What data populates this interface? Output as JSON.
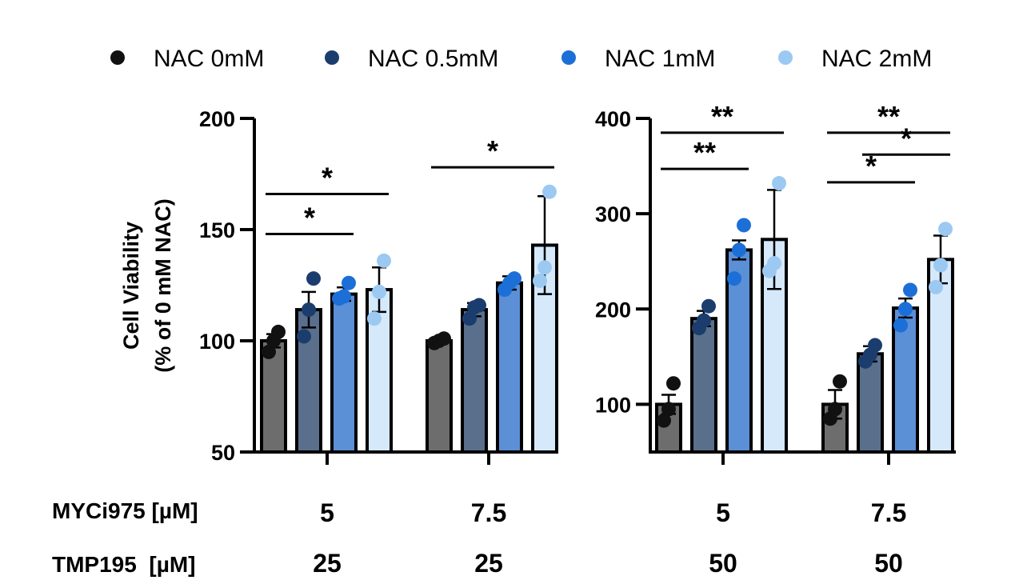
{
  "legend": [
    {
      "name": "NAC 0mM",
      "color": "#111111"
    },
    {
      "name": "NAC 0.5mM",
      "color": "#1b3d6e"
    },
    {
      "name": "NAC 1mM",
      "color": "#1c6fd6"
    },
    {
      "name": "NAC 2mM",
      "color": "#9cc9f2"
    }
  ],
  "bar_fills": [
    "#6d6d6d",
    "#5a6f8c",
    "#5b8fd6",
    "#d6e9fb"
  ],
  "axes": {
    "ylabel_line1": "Cell Viability",
    "ylabel_line2": "(% of 0 mM NAC)"
  },
  "row_labels": {
    "myc": "MYCi975 [µM]",
    "tmp": "TMP195  [µM]"
  },
  "chart_data": [
    {
      "type": "bar",
      "title": "",
      "ylabel": "Cell Viability (% of 0 mM NAC)",
      "ylim": [
        50,
        200
      ],
      "yticks": [
        50,
        100,
        150,
        200
      ],
      "groups": [
        {
          "myc": "5",
          "tmp": "25",
          "means": [
            100,
            114,
            121,
            123
          ],
          "sd": [
            3,
            8,
            3,
            10
          ],
          "points": [
            [
              95,
              100,
              104
            ],
            [
              102,
              114,
              128
            ],
            [
              119,
              120,
              126
            ],
            [
              110,
              122,
              136
            ]
          ]
        },
        {
          "myc": "7.5",
          "tmp": "25",
          "means": [
            100,
            114,
            126,
            143
          ],
          "sd": [
            1,
            3,
            3,
            22
          ],
          "points": [
            [
              99,
              100,
              101
            ],
            [
              110,
              115,
              116
            ],
            [
              123,
              126,
              128
            ],
            [
              127,
              133,
              167
            ]
          ]
        }
      ],
      "significance": [
        {
          "group": 0,
          "from": 0,
          "to": 2,
          "label": "*",
          "y": 148
        },
        {
          "group": 0,
          "from": 0,
          "to": 3,
          "label": "*",
          "y": 166
        },
        {
          "group": 1,
          "from": 0,
          "to": 3,
          "label": "*",
          "y": 178
        }
      ]
    },
    {
      "type": "bar",
      "title": "",
      "ylabel": "",
      "ylim": [
        50,
        400
      ],
      "yticks": [
        100,
        200,
        300,
        400
      ],
      "groups": [
        {
          "myc": "5",
          "tmp": "50",
          "means": [
            100,
            190,
            262,
            273
          ],
          "sd": [
            10,
            8,
            10,
            52
          ],
          "points": [
            [
              83,
              95,
              122
            ],
            [
              180,
              188,
              203
            ],
            [
              232,
              262,
              288
            ],
            [
              240,
              248,
              332
            ]
          ]
        },
        {
          "myc": "7.5",
          "tmp": "50",
          "means": [
            100,
            153,
            201,
            252
          ],
          "sd": [
            15,
            8,
            10,
            25
          ],
          "points": [
            [
              85,
              95,
              124
            ],
            [
              145,
              152,
              162
            ],
            [
              183,
              200,
              220
            ],
            [
              223,
              246,
              284
            ]
          ]
        }
      ],
      "significance": [
        {
          "group": 0,
          "from": 0,
          "to": 2,
          "label": "**",
          "y": 347
        },
        {
          "group": 0,
          "from": 0,
          "to": 3,
          "label": "**",
          "y": 385
        },
        {
          "group": 1,
          "from": 0,
          "to": 2,
          "label": "*",
          "y": 333
        },
        {
          "group": 1,
          "from": 1,
          "to": 3,
          "label": "*",
          "y": 362
        },
        {
          "group": 1,
          "from": 0,
          "to": 3,
          "label": "**",
          "y": 385
        }
      ]
    }
  ]
}
